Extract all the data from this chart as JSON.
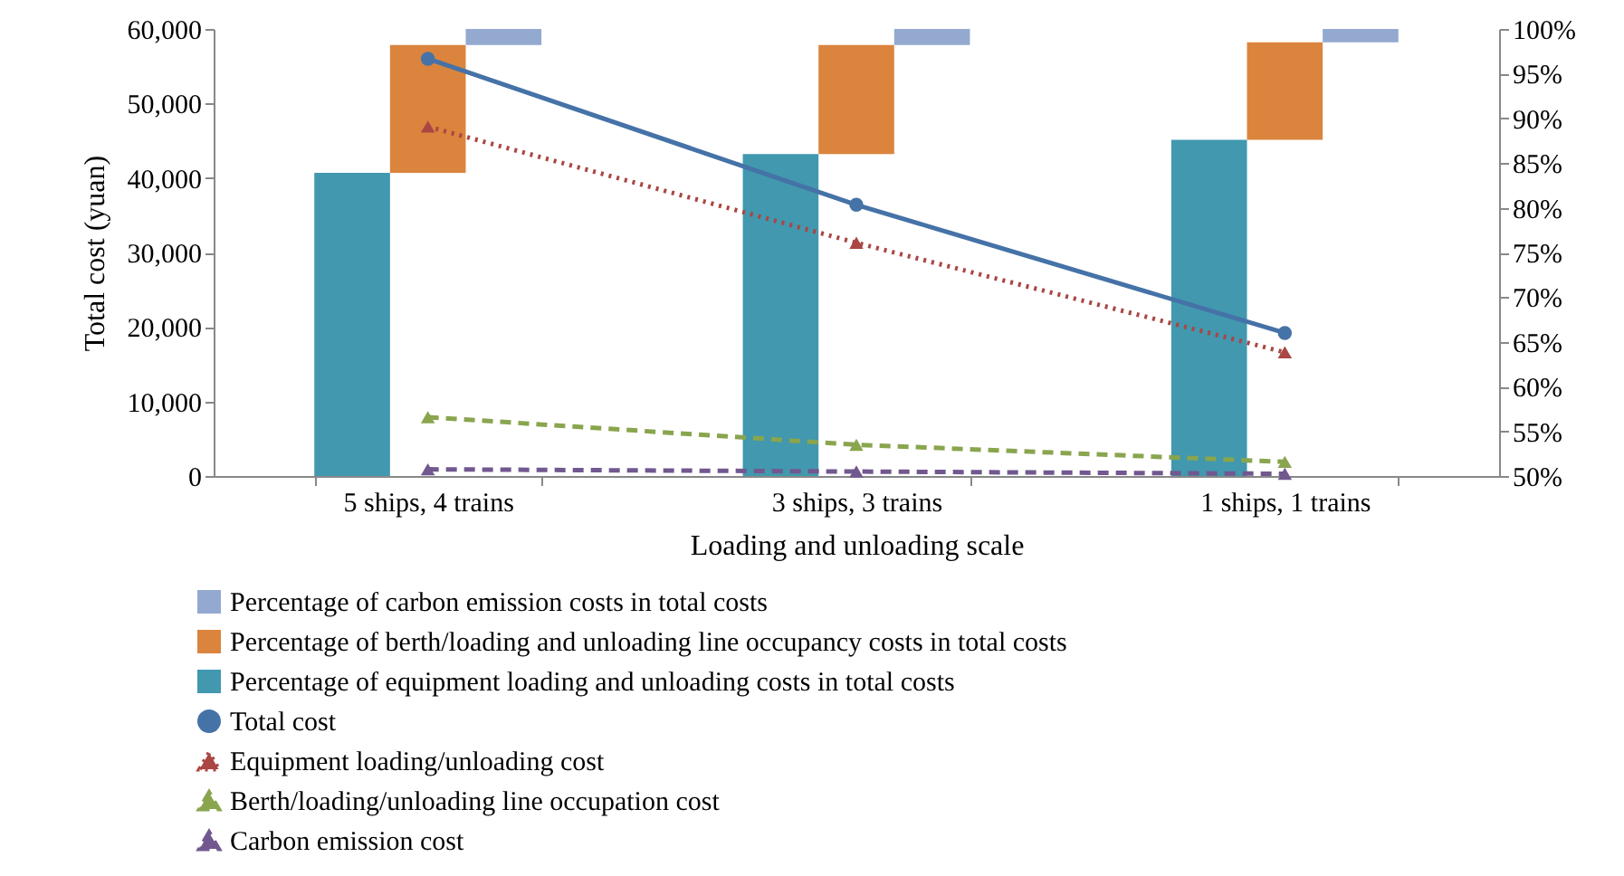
{
  "chart_data": {
    "type": "bar",
    "xlabel": "Loading and unloading scale",
    "ylabel": "Total cost (yuan)",
    "categories": [
      "5 ships, 4 trains",
      "3 ships, 3 trains",
      "1 ships, 1 trains"
    ],
    "series": [
      {
        "name": "Percentage of carbon emission costs in total costs",
        "axis": "y2",
        "color": "#93a9d0",
        "base": [
          98.2,
          98.2,
          98.5
        ],
        "values": [
          1.8,
          1.8,
          1.5
        ]
      },
      {
        "name": "Percentage of berth/loading and unloading line occupancy costs in total costs",
        "axis": "y2",
        "color": "#db843d",
        "base": [
          83.9,
          86.0,
          87.6
        ],
        "values": [
          14.3,
          12.2,
          10.9
        ]
      },
      {
        "name": "Percentage of equipment loading and unloading costs in total costs",
        "axis": "y2",
        "color": "#4198af",
        "values": [
          83.9,
          86.0,
          87.6
        ]
      },
      {
        "name": "Total cost",
        "type": "line",
        "axis": "y",
        "color": "#4572a7",
        "marker": "circle",
        "line_style": "solid",
        "values": [
          56000,
          36400,
          19200
        ]
      },
      {
        "name": "Equipment loading/unloading cost",
        "type": "line",
        "axis": "y",
        "color": "#aa4643",
        "marker": "triangle",
        "line_style": "dotted",
        "values": [
          46900,
          31300,
          16600
        ]
      },
      {
        "name": "Berth/loading/unloading line occupation cost",
        "type": "line",
        "axis": "y",
        "color": "#89a54e",
        "marker": "triangle",
        "line_style": "dashed",
        "values": [
          7900,
          4200,
          1900
        ]
      },
      {
        "name": "Carbon emission cost",
        "type": "line",
        "axis": "y",
        "color": "#71588f",
        "marker": "triangle",
        "line_style": "dashed",
        "values": [
          900,
          600,
          300
        ]
      }
    ],
    "ylim": [
      0,
      60000
    ],
    "yticks": [
      0,
      {
        "value": 10000,
        "label": "10,000"
      },
      {
        "value": 20000,
        "label": "20,000"
      },
      {
        "value": 30000,
        "label": "30,000"
      },
      {
        "value": 40000,
        "label": "40,000"
      },
      {
        "value": 50000,
        "label": "50,000"
      },
      {
        "value": 60000,
        "label": "60,000"
      }
    ],
    "y2lim": [
      50,
      100
    ],
    "y2ticks": [
      {
        "value": 50,
        "label": "50%"
      },
      {
        "value": 55,
        "label": "55%"
      },
      {
        "value": 60,
        "label": "60%"
      },
      {
        "value": 65,
        "label": "65%"
      },
      {
        "value": 70,
        "label": "70%"
      },
      {
        "value": 75,
        "label": "75%"
      },
      {
        "value": 80,
        "label": "80%"
      },
      {
        "value": 85,
        "label": "85%"
      },
      {
        "value": 90,
        "label": "90%"
      },
      {
        "value": 95,
        "label": "95%"
      },
      {
        "value": 100,
        "label": "100%"
      }
    ],
    "grid": false,
    "legend": "bottom"
  }
}
